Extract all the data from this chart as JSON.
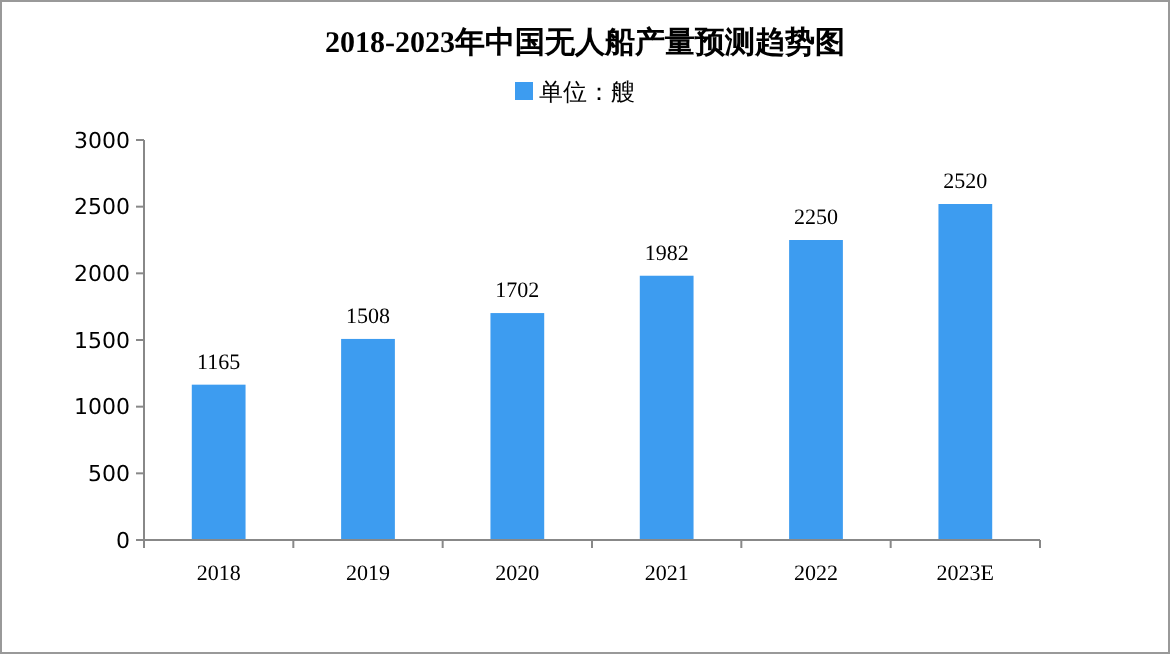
{
  "chart_data": {
    "type": "bar",
    "title": "2018-2023年中国无人船产量预测趋势图",
    "categories": [
      "2018",
      "2019",
      "2020",
      "2021",
      "2022",
      "2023E"
    ],
    "series": [
      {
        "name": "单位：艘",
        "color": "#3d9cf0",
        "values": [
          1165,
          1508,
          1702,
          1982,
          2250,
          2520
        ]
      }
    ],
    "ylim": [
      0,
      3000
    ],
    "yticks": [
      0,
      500,
      1000,
      1500,
      2000,
      2500,
      3000
    ],
    "grid": false,
    "legend": "top",
    "data_labels": true
  }
}
